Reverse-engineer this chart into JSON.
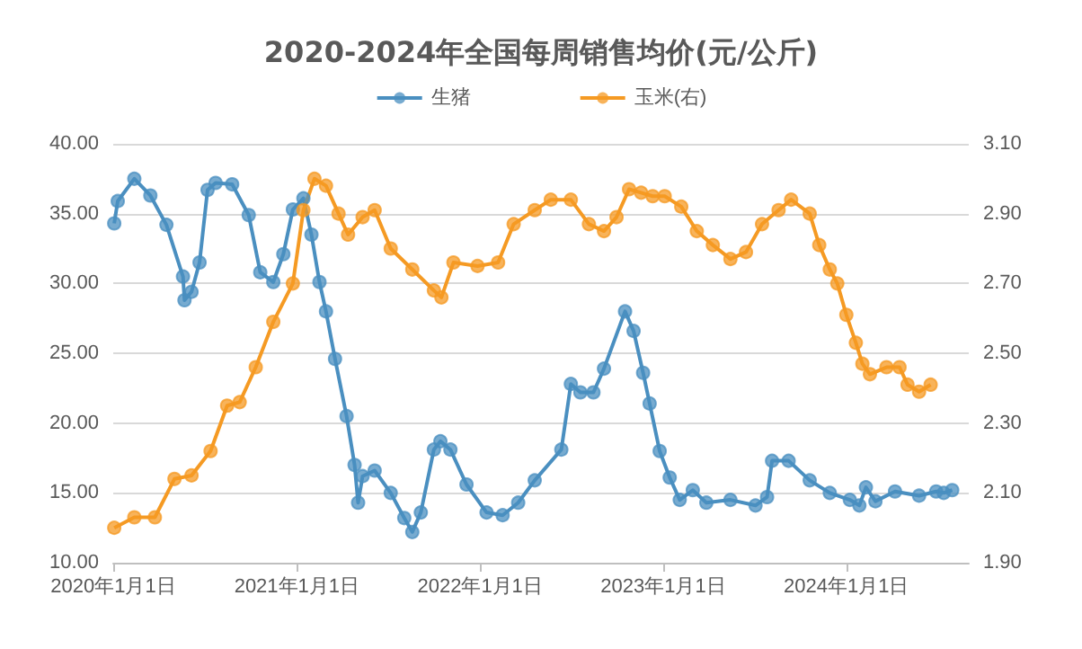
{
  "chart_data": {
    "type": "line",
    "title": "2020-2024年全国每周销售均价(元/公斤)",
    "legend": "top",
    "grid": "y",
    "marker": "circle",
    "line_style": "solid",
    "xlim": [
      "2020-01-01",
      "2024-09-01"
    ],
    "xticks": [
      {
        "value": "2020-01-01",
        "label": "2020年1月1日"
      },
      {
        "value": "2021-01-01",
        "label": "2021年1月1日"
      },
      {
        "value": "2022-01-01",
        "label": "2022年1月1日"
      },
      {
        "value": "2023-01-01",
        "label": "2023年1月1日"
      },
      {
        "value": "2024-01-01",
        "label": "2024年1月1日"
      }
    ],
    "ylim": [
      10,
      40
    ],
    "yticks": [
      {
        "value": 10,
        "label": "10.00"
      },
      {
        "value": 15,
        "label": "15.00"
      },
      {
        "value": 20,
        "label": "20.00"
      },
      {
        "value": 25,
        "label": "25.00"
      },
      {
        "value": 30,
        "label": "30.00"
      },
      {
        "value": 35,
        "label": "35.00"
      },
      {
        "value": 40,
        "label": "40.00"
      }
    ],
    "y2lim": [
      1.9,
      3.1
    ],
    "y2ticks": [
      {
        "value": 1.9,
        "label": "1.90"
      },
      {
        "value": 2.1,
        "label": "2.10"
      },
      {
        "value": 2.3,
        "label": "2.30"
      },
      {
        "value": 2.5,
        "label": "2.50"
      },
      {
        "value": 2.7,
        "label": "2.70"
      },
      {
        "value": 2.9,
        "label": "2.90"
      },
      {
        "value": 3.1,
        "label": "3.10"
      }
    ],
    "series": [
      {
        "name": "生猪",
        "color": "#4a8fc0",
        "x": [
          "2020-01-03",
          "2020-01-10",
          "2020-02-12",
          "2020-03-15",
          "2020-04-16",
          "2020-05-19",
          "2020-05-22",
          "2020-06-05",
          "2020-06-21",
          "2020-07-07",
          "2020-07-23",
          "2020-08-25",
          "2020-09-27",
          "2020-10-20",
          "2020-11-15",
          "2020-12-05",
          "2020-12-24",
          "2021-01-14",
          "2021-01-30",
          "2021-02-15",
          "2021-02-28",
          "2021-03-18",
          "2021-04-10",
          "2021-04-26",
          "2021-05-03",
          "2021-05-12",
          "2021-06-05",
          "2021-07-07",
          "2021-08-03",
          "2021-08-19",
          "2021-09-05",
          "2021-10-01",
          "2021-10-14",
          "2021-11-03",
          "2021-12-05",
          "2022-01-14",
          "2022-02-15",
          "2022-03-18",
          "2022-04-20",
          "2022-06-12",
          "2022-07-01",
          "2022-07-20",
          "2022-08-15",
          "2022-09-05",
          "2022-10-17",
          "2022-11-03",
          "2022-11-22",
          "2022-12-05",
          "2022-12-25",
          "2023-01-14",
          "2023-02-03",
          "2023-03-01",
          "2023-03-28",
          "2023-05-15",
          "2023-07-04",
          "2023-07-27",
          "2023-08-06",
          "2023-09-08",
          "2023-10-20",
          "2023-11-29",
          "2024-01-08",
          "2024-01-27",
          "2024-02-09",
          "2024-02-28",
          "2024-04-07",
          "2024-05-25",
          "2024-06-28",
          "2024-07-13",
          "2024-07-30"
        ],
        "values": [
          34.3,
          35.9,
          37.5,
          36.3,
          34.2,
          30.5,
          28.8,
          29.4,
          31.5,
          36.7,
          37.2,
          37.1,
          34.9,
          30.8,
          30.1,
          32.1,
          35.3,
          36.1,
          33.5,
          30.1,
          28.0,
          24.6,
          20.5,
          17.0,
          14.3,
          16.2,
          16.6,
          15.0,
          13.2,
          12.2,
          13.6,
          18.1,
          18.7,
          18.1,
          15.6,
          13.6,
          13.4,
          14.3,
          15.9,
          18.1,
          22.8,
          22.2,
          22.2,
          23.9,
          28.0,
          26.6,
          23.6,
          21.4,
          18.0,
          16.1,
          14.5,
          15.2,
          14.3,
          14.5,
          14.1,
          14.7,
          17.3,
          17.3,
          15.9,
          15.0,
          14.5,
          14.1,
          15.4,
          14.4,
          15.1,
          14.8,
          15.1,
          15.0,
          15.2
        ]
      },
      {
        "name": "玉米(右)",
        "color": "#f59a23",
        "axis": "y2",
        "x": [
          "2020-01-03",
          "2020-02-12",
          "2020-03-24",
          "2020-05-02",
          "2020-06-05",
          "2020-07-13",
          "2020-08-15",
          "2020-09-09",
          "2020-10-11",
          "2020-11-15",
          "2020-12-24",
          "2021-01-14",
          "2021-02-05",
          "2021-02-28",
          "2021-03-25",
          "2021-04-13",
          "2021-05-12",
          "2021-06-05",
          "2021-07-07",
          "2021-08-19",
          "2021-10-01",
          "2021-10-16",
          "2021-11-09",
          "2021-12-27",
          "2022-02-06",
          "2022-03-09",
          "2022-04-20",
          "2022-05-22",
          "2022-07-01",
          "2022-08-06",
          "2022-09-05",
          "2022-09-30",
          "2022-10-25",
          "2022-11-18",
          "2022-12-11",
          "2023-01-04",
          "2023-02-06",
          "2023-03-09",
          "2023-04-10",
          "2023-05-15",
          "2023-06-15",
          "2023-07-17",
          "2023-08-19",
          "2023-09-13",
          "2023-10-20",
          "2023-11-08",
          "2023-11-29",
          "2023-12-14",
          "2024-01-01",
          "2024-01-20",
          "2024-02-02",
          "2024-02-17",
          "2024-03-21",
          "2024-04-16",
          "2024-05-02",
          "2024-05-25",
          "2024-06-17"
        ],
        "values": [
          2.0,
          2.03,
          2.03,
          2.14,
          2.15,
          2.22,
          2.35,
          2.36,
          2.46,
          2.59,
          2.7,
          2.91,
          3.0,
          2.98,
          2.9,
          2.84,
          2.89,
          2.91,
          2.8,
          2.74,
          2.68,
          2.66,
          2.76,
          2.75,
          2.76,
          2.87,
          2.91,
          2.94,
          2.94,
          2.87,
          2.85,
          2.89,
          2.97,
          2.96,
          2.95,
          2.95,
          2.92,
          2.85,
          2.81,
          2.77,
          2.79,
          2.87,
          2.91,
          2.94,
          2.9,
          2.81,
          2.74,
          2.7,
          2.61,
          2.53,
          2.47,
          2.44,
          2.46,
          2.46,
          2.41,
          2.39,
          2.41
        ]
      }
    ]
  }
}
